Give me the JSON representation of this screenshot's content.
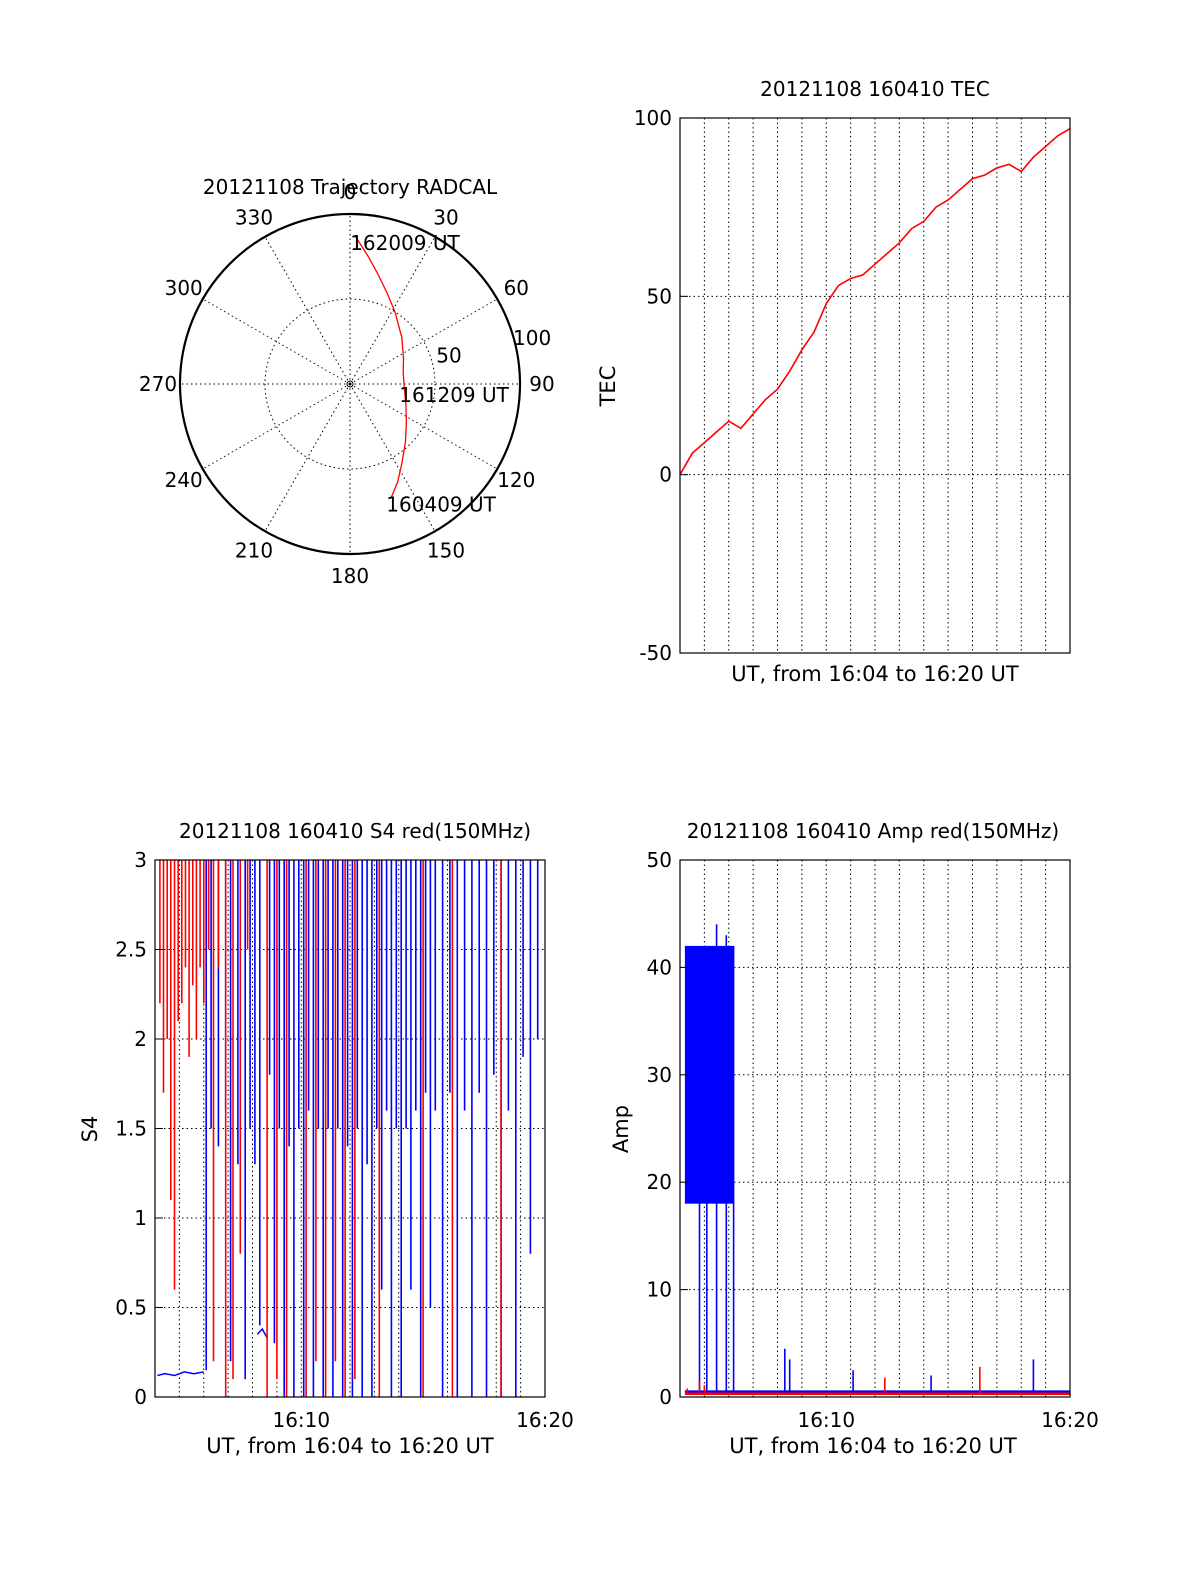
{
  "colors": {
    "red": "#ff0000",
    "blue": "#0000ff",
    "axes": "#000000"
  },
  "chart_data": [
    {
      "type": "polar",
      "title": "20121108 Trajectory RADCAL",
      "azimuth_labels": [
        "0",
        "30",
        "60",
        "90",
        "120",
        "150",
        "180",
        "210",
        "240",
        "270",
        "300",
        "330"
      ],
      "radial_labels": [
        "50",
        "100"
      ],
      "radial_range": [
        0,
        100
      ],
      "series": [
        {
          "color": "red",
          "azimuth_deg": [
            2,
            8,
            14,
            22,
            32,
            48,
            64,
            78,
            94,
            110,
            124,
            136,
            147,
            154,
            160
          ],
          "zenith_deg": [
            87,
            76,
            67,
            58,
            50,
            41,
            35,
            32,
            32,
            35,
            40,
            47,
            56,
            64,
            71
          ]
        }
      ],
      "annotations": [
        {
          "text": "162009 UT",
          "azimuth_deg": 2,
          "zenith_deg": 87
        },
        {
          "text": "161209 UT",
          "azimuth_deg": 94,
          "zenith_deg": 32
        },
        {
          "text": "160409 UT",
          "azimuth_deg": 160,
          "zenith_deg": 71
        }
      ]
    },
    {
      "type": "line",
      "title": "20121108 160410 TEC",
      "xlabel": "UT, from 16:04 to 16:20 UT",
      "ylabel": "TEC",
      "xlim": [
        0,
        16
      ],
      "ylim": [
        -50,
        100
      ],
      "yticks": [
        "100",
        "50",
        "0",
        "-50"
      ],
      "xticks": [],
      "grid": true,
      "series": [
        {
          "color": "red",
          "x": [
            0,
            0.5,
            1,
            1.5,
            2,
            2.5,
            3,
            3.5,
            4,
            4.5,
            5,
            5.5,
            6,
            6.5,
            7,
            7.5,
            8,
            8.5,
            9,
            9.5,
            10,
            10.5,
            11,
            11.5,
            12,
            12.5,
            13,
            13.5,
            14,
            14.5,
            15,
            15.5,
            16
          ],
          "y": [
            0,
            6,
            9,
            12,
            15,
            13,
            17,
            21,
            24,
            29,
            35,
            40,
            48,
            53,
            55,
            56,
            59,
            62,
            65,
            69,
            71,
            75,
            77,
            80,
            83,
            84,
            86,
            87,
            85,
            89,
            92,
            95,
            97
          ]
        }
      ]
    },
    {
      "type": "line",
      "title": "20121108 160410 S4 red(150MHz)",
      "xlabel": "UT, from 16:04 to 16:20 UT",
      "ylabel": "S4",
      "xlim": [
        0,
        16
      ],
      "ylim": [
        0,
        3
      ],
      "yticks": [
        "3",
        "2.5",
        "2",
        "1.5",
        "1",
        "0.5",
        "0"
      ],
      "xticks": [
        {
          "x": 6,
          "label": "16:10"
        },
        {
          "x": 16,
          "label": "16:20"
        }
      ],
      "grid": true,
      "series": [
        {
          "color": "blue",
          "segments": [
            {
              "x": [
                0.1,
                0.4,
                0.8,
                1.2,
                1.6,
                2.0
              ],
              "y": [
                0.12,
                0.13,
                0.12,
                0.14,
                0.13,
                0.14
              ]
            },
            {
              "x": [
                4.2,
                4.4,
                4.6
              ],
              "y": [
                0.35,
                0.38,
                0.33
              ]
            }
          ],
          "spikes_x": [
            2.1,
            2.3,
            2.6,
            2.9,
            3.1,
            3.4,
            3.7,
            3.9,
            4.1,
            4.3,
            4.7,
            4.9,
            5.1,
            5.3,
            5.5,
            5.7,
            5.9,
            6.1,
            6.3,
            6.5,
            6.7,
            6.9,
            7.1,
            7.3,
            7.5,
            7.7,
            7.9,
            8.1,
            8.3,
            8.5,
            8.7,
            8.9,
            9.1,
            9.3,
            9.5,
            9.7,
            9.9,
            10.1,
            10.3,
            10.5,
            10.7,
            10.9,
            11.1,
            11.3,
            11.5,
            11.8,
            12.1,
            12.4,
            12.7,
            13.0,
            13.3,
            13.6,
            13.9,
            14.2,
            14.5,
            14.8,
            15.1,
            15.4,
            15.7
          ],
          "spikes_low": [
            0.15,
            1.5,
            1.4,
            1.6,
            0.2,
            1.3,
            0.1,
            1.5,
            1.3,
            0.4,
            1.8,
            0.3,
            1.5,
            0,
            1.4,
            0,
            1.5,
            0,
            1.6,
            0,
            1.5,
            0,
            1.5,
            0,
            1.5,
            0,
            1.4,
            0,
            1.5,
            0,
            1.3,
            0,
            1.5,
            0.6,
            1.6,
            0,
            1.5,
            0,
            1.5,
            0.6,
            1.6,
            0,
            1.7,
            0.5,
            1.6,
            0,
            1.7,
            0,
            1.6,
            0,
            1.7,
            0,
            1.8,
            0,
            1.6,
            0,
            1.9,
            0.8,
            2.0
          ],
          "spikes_high": [
            3,
            3,
            3,
            3,
            3,
            3,
            3,
            3,
            3,
            3,
            3,
            3,
            3,
            3,
            3,
            3,
            3,
            3,
            3,
            3,
            3,
            3,
            3,
            3,
            3,
            3,
            3,
            3,
            3,
            3,
            3,
            3,
            3,
            3,
            3,
            3,
            3,
            3,
            3,
            3,
            3,
            3,
            3,
            3,
            3,
            3,
            3,
            3,
            3,
            3,
            3,
            3,
            3,
            3,
            3,
            3,
            3,
            3,
            3
          ]
        },
        {
          "color": "red",
          "spikes_x": [
            0.2,
            0.35,
            0.5,
            0.65,
            0.8,
            0.95,
            1.1,
            1.25,
            1.4,
            1.55,
            1.7,
            1.85,
            2.0,
            2.2,
            2.4,
            2.6,
            2.9,
            3.2,
            3.5,
            3.8,
            4.6,
            5.0,
            5.4,
            6.2,
            6.6,
            7.0,
            7.4,
            7.8,
            8.2,
            9.2,
            11.0,
            12.2,
            14.2
          ],
          "spikes_low": [
            2.2,
            1.7,
            2.0,
            1.1,
            0.6,
            2.1,
            2.2,
            2.4,
            1.9,
            2.3,
            2.0,
            2.4,
            2.2,
            2.5,
            0.2,
            2.4,
            0,
            0.1,
            0.8,
            2.5,
            0,
            0.1,
            0,
            0,
            0.2,
            0,
            0.2,
            0,
            0.1,
            0,
            0,
            0,
            0
          ],
          "spikes_high": [
            3,
            3,
            3,
            3,
            3,
            3,
            3,
            3,
            3,
            3,
            3,
            3,
            3,
            3,
            3,
            3,
            3,
            3,
            3,
            3,
            3,
            3,
            3,
            3,
            3,
            3,
            3,
            3,
            3,
            3,
            3,
            3,
            3
          ]
        }
      ]
    },
    {
      "type": "line",
      "title": "20121108 160410 Amp red(150MHz)",
      "xlabel": "UT, from 16:04 to 16:20 UT",
      "ylabel": "Amp",
      "xlim": [
        0,
        16
      ],
      "ylim": [
        0,
        50
      ],
      "yticks": [
        "50",
        "40",
        "30",
        "20",
        "10",
        "0"
      ],
      "xticks": [
        {
          "x": 6,
          "label": "16:10"
        },
        {
          "x": 16,
          "label": "16:20"
        }
      ],
      "grid": true,
      "series": [
        {
          "color": "blue",
          "band": {
            "x_start": 0.2,
            "x_end": 2.2,
            "low": 18,
            "high": 42
          },
          "spikes_x": [
            0.8,
            1.1,
            1.5,
            1.9,
            2.2,
            4.3,
            4.5,
            7.1,
            10.3,
            14.5
          ],
          "spikes_low": [
            0.5,
            0.5,
            0.5,
            0.5,
            0.5,
            0.5,
            0.5,
            0.5,
            0.5,
            0.5
          ],
          "spikes_high": [
            22,
            41,
            44,
            43,
            42,
            4.5,
            3.5,
            2.5,
            2.0,
            3.5
          ],
          "baseline": 0.5
        },
        {
          "color": "red",
          "spikes_x": [
            0.3,
            0.8,
            1.0,
            8.4,
            12.3
          ],
          "spikes_low": [
            0.2,
            0.2,
            0.2,
            0.2,
            0.2
          ],
          "spikes_high": [
            0.8,
            1.5,
            1.1,
            1.8,
            2.8
          ],
          "baseline": 0.3
        }
      ]
    }
  ]
}
